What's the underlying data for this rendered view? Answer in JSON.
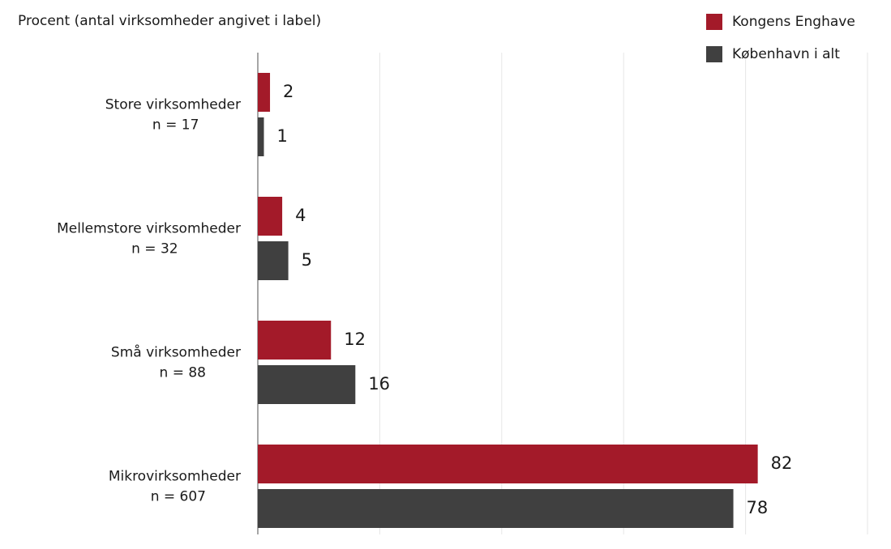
{
  "chart_data": {
    "type": "barh",
    "title": "Procent (antal virksomheder angivet i label)",
    "categories": [
      [
        "Store virksomheder",
        "n = 17"
      ],
      [
        "Mellemstore virksomheder",
        "n = 32"
      ],
      [
        "Små virksomheder",
        "n = 88"
      ],
      [
        "Mikrovirksomheder",
        "n = 607"
      ]
    ],
    "series": [
      {
        "name": "Kongens Enghave",
        "color": "#a31a29",
        "values": [
          2,
          4,
          12,
          82
        ]
      },
      {
        "name": "København i alt",
        "color": "#404040",
        "values": [
          1,
          5,
          16,
          78
        ]
      }
    ],
    "xlim": [
      0,
      100
    ],
    "xticks": [
      0,
      20,
      40,
      60,
      80,
      100
    ],
    "grid": true,
    "legend": "top-right"
  }
}
